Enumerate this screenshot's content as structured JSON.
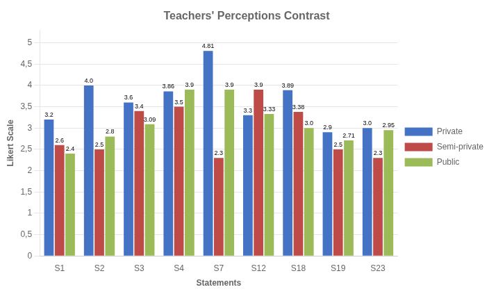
{
  "chart_data": {
    "type": "bar",
    "title": "Teachers' Perceptions Contrast",
    "xlabel": "Statements",
    "ylabel": "Likert Scale",
    "categories": [
      "S1",
      "S2",
      "S3",
      "S4",
      "S7",
      "S12",
      "S18",
      "S19",
      "S23"
    ],
    "series": [
      {
        "name": "Private",
        "color": "#4472C4",
        "values": [
          3.2,
          4.0,
          3.6,
          3.86,
          4.81,
          3.3,
          3.89,
          2.9,
          3.0
        ],
        "value_labels": [
          "3.2",
          "4.0",
          "3.6",
          "3.86",
          "4.81",
          "3.3",
          "3.89",
          "2.9",
          "3.0"
        ]
      },
      {
        "name": "Semi-private",
        "color": "#BE4B48",
        "values": [
          2.6,
          2.5,
          3.4,
          3.5,
          2.3,
          3.9,
          3.38,
          2.5,
          2.3
        ],
        "value_labels": [
          "2.6",
          "2.5",
          "3.4",
          "3.5",
          "2.3",
          "3.9",
          "3.38",
          "2.5",
          "2.3"
        ]
      },
      {
        "name": "Public",
        "color": "#9BBB59",
        "values": [
          2.4,
          2.8,
          3.09,
          3.9,
          3.9,
          3.33,
          3.0,
          2.71,
          2.95
        ],
        "value_labels": [
          "2.4",
          "2.8",
          "3.09",
          "3.9",
          "3.9",
          "3.33",
          "3.0",
          "2.71",
          "2.95"
        ]
      }
    ],
    "ylim": [
      0,
      5.3
    ],
    "yticks": [
      0,
      {
        "value": 0.5,
        "label": "0,5"
      },
      1,
      {
        "value": 1.5,
        "label": "1,5"
      },
      2,
      {
        "value": 2.5,
        "label": "2,5"
      },
      3,
      {
        "value": 3.5,
        "label": "3,5"
      },
      4,
      {
        "value": 4.5,
        "label": "4,5"
      },
      5
    ],
    "grid": true,
    "legend": "right",
    "data_labels": true
  }
}
